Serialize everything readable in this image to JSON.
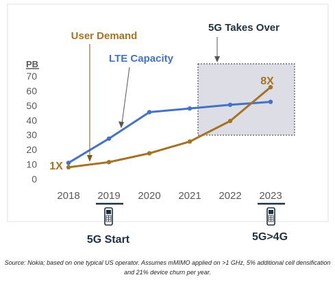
{
  "chart_data": {
    "type": "line",
    "ylabel": "PB",
    "ylim": [
      0,
      70
    ],
    "yticks": [
      0,
      10,
      20,
      30,
      40,
      50,
      60,
      70
    ],
    "categories": [
      "2018",
      "2019",
      "2020",
      "2021",
      "2022",
      "2023"
    ],
    "series": [
      {
        "name": "LTE Capacity",
        "color": "#4472c4",
        "values": [
          11,
          27.5,
          45.5,
          48,
          50.5,
          52.5
        ]
      },
      {
        "name": "User Demand",
        "color": "#a47324",
        "values": [
          8,
          11.5,
          17.5,
          25.5,
          39.5,
          62.5
        ]
      }
    ],
    "annotations": {
      "user_demand": "User Demand",
      "lte_capacity": "LTE Capacity",
      "takeover": "5G Takes Over",
      "start_multiplier": "1X",
      "end_multiplier": "8X",
      "milestone_start": "5G Start",
      "milestone_end": "5G>4G"
    },
    "underlined_years": [
      "2019",
      "2023"
    ],
    "colors": {
      "lte": "#4472c4",
      "demand": "#a47324",
      "shade": "#d9dbe6",
      "text": "#1f3040",
      "axis": "#595959"
    }
  },
  "source_line1": "Source: Nokia; based on one typical US operator. Assumes mMIMO applied on >1 GHz, 5% additional cell densification",
  "source_line2": "and 21% device churn per year."
}
